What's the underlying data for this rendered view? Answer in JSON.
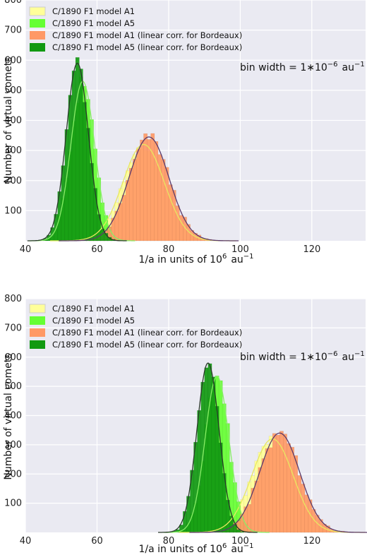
{
  "chart_data": [
    {
      "type": "histogram",
      "xlabel_main": "1/a in units of 10",
      "xlabel_exp": "6",
      "xlabel_unit": "au",
      "xlabel_unit_exp": "−1",
      "ylabel": "Number of virtual comets",
      "annotation_main": "bin width = 1",
      "annotation_op": "∗10",
      "annotation_exp": "−6",
      "annotation_unit": "au",
      "annotation_unit_exp": "−1",
      "xlim": [
        40,
        135
      ],
      "ylim": [
        0,
        800
      ],
      "x_ticks": [
        40,
        60,
        80,
        100,
        120
      ],
      "y_ticks": [
        100,
        200,
        300,
        400,
        500,
        600,
        700,
        800
      ],
      "grid": true,
      "legend_position": "upper-left",
      "series": [
        {
          "name": "C/1890 F1 model A1",
          "mean": 73,
          "sigma": 5.8,
          "peak": 320,
          "color": "#ffff99",
          "fit_color": "#e8e860"
        },
        {
          "name": "C/1890 F1 model A5",
          "mean": 56,
          "sigma": 3.3,
          "peak": 530,
          "color": "#66ff33",
          "fit_color": "#88ee66"
        },
        {
          "name": "C/1890 F1 model A1 (linear corr. for Bordeaux)",
          "mean": 74.5,
          "sigma": 5.6,
          "peak": 345,
          "color": "#ff9966",
          "fit_color": "#5a3a6a"
        },
        {
          "name": "C/1890 F1 model A5 (linear corr. for Bordeaux)",
          "mean": 54.5,
          "sigma": 3.1,
          "peak": 590,
          "color": "#119911",
          "fit_color": "#2a3a2a"
        }
      ]
    },
    {
      "type": "histogram",
      "xlabel_main": "1/a in units of 10",
      "xlabel_exp": "6",
      "xlabel_unit": "au",
      "xlabel_unit_exp": "−1",
      "ylabel": "Number of virtual comets",
      "annotation_main": "bin width = 1",
      "annotation_op": "∗10",
      "annotation_exp": "−6",
      "annotation_unit": "au",
      "annotation_unit_exp": "−1",
      "xlim": [
        40,
        135
      ],
      "ylim": [
        0,
        800
      ],
      "x_ticks": [
        40,
        60,
        80,
        100,
        120
      ],
      "y_ticks": [
        100,
        200,
        300,
        400,
        500,
        600,
        700,
        800
      ],
      "grid": true,
      "legend_position": "upper-left",
      "series": [
        {
          "name": "C/1890 F1 model A1",
          "mean": 109,
          "sigma": 5.8,
          "peak": 320,
          "color": "#ffff99",
          "fit_color": "#e8e860"
        },
        {
          "name": "C/1890 F1 model A5",
          "mean": 93.5,
          "sigma": 3.3,
          "peak": 535,
          "color": "#66ff33",
          "fit_color": "#88ee66"
        },
        {
          "name": "C/1890 F1 model A1 (linear corr. for Bordeaux)",
          "mean": 111,
          "sigma": 5.6,
          "peak": 340,
          "color": "#ff9966",
          "fit_color": "#5a3a6a"
        },
        {
          "name": "C/1890 F1 model A5 (linear corr. for Bordeaux)",
          "mean": 91,
          "sigma": 3.1,
          "peak": 580,
          "color": "#119911",
          "fit_color": "#2a3a2a"
        }
      ]
    }
  ]
}
